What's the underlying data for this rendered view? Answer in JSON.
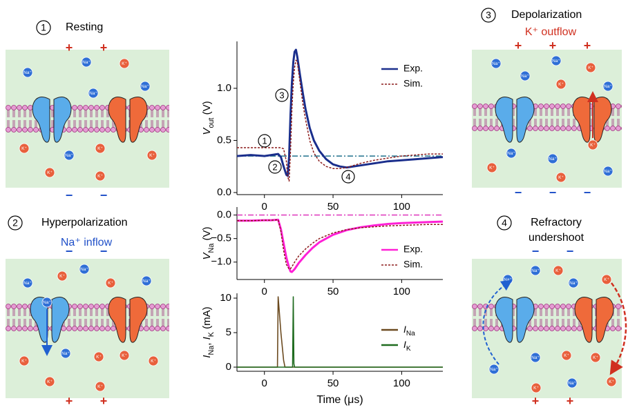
{
  "chart_data": [
    {
      "type": "line",
      "y_label": [
        {
          "text": "V",
          "italic": true
        },
        {
          "text": "out",
          "sub": true
        },
        {
          "text": " (V)"
        }
      ],
      "x": [
        -20,
        -10,
        0,
        5,
        10,
        12,
        14,
        16,
        17,
        18,
        19,
        20,
        21,
        22,
        23,
        24,
        26,
        28,
        30,
        33,
        36,
        40,
        45,
        50,
        55,
        60,
        65,
        70,
        80,
        90,
        100,
        110,
        120,
        130
      ],
      "series": [
        {
          "name": "Exp.",
          "color": "#1a2e8c",
          "dashed": false,
          "values": [
            0.35,
            0.36,
            0.35,
            0.36,
            0.37,
            0.34,
            0.25,
            0.17,
            0.16,
            0.35,
            0.75,
            1.05,
            1.25,
            1.35,
            1.37,
            1.3,
            1.12,
            0.95,
            0.8,
            0.62,
            0.5,
            0.4,
            0.32,
            0.27,
            0.25,
            0.24,
            0.25,
            0.26,
            0.28,
            0.3,
            0.31,
            0.32,
            0.33,
            0.34
          ]
        },
        {
          "name": "Sim.",
          "color": "#8b1a1a",
          "dashed": true,
          "values": [
            0.43,
            0.43,
            0.43,
            0.43,
            0.43,
            0.43,
            0.42,
            0.3,
            0.15,
            0.11,
            0.4,
            0.8,
            1.05,
            1.2,
            1.27,
            1.25,
            1.05,
            0.85,
            0.7,
            0.5,
            0.38,
            0.3,
            0.25,
            0.23,
            0.23,
            0.24,
            0.26,
            0.28,
            0.31,
            0.33,
            0.35,
            0.36,
            0.37,
            0.37
          ]
        }
      ],
      "hline": {
        "value": 0.35,
        "color": "#1f6f8b"
      },
      "annotations": [
        "1",
        "2",
        "3",
        "4"
      ],
      "xlim": [
        -20,
        130
      ],
      "xticks": [
        0,
        50,
        100
      ],
      "ylim": [
        -0.02,
        1.45
      ],
      "yticks": [
        {
          "value": 0,
          "label": "0.0"
        },
        {
          "value": 0.5,
          "label": "0.5"
        },
        {
          "value": 1,
          "label": "1.0"
        }
      ]
    },
    {
      "type": "line",
      "y_label": [
        {
          "text": "V",
          "italic": true
        },
        {
          "text": "Na",
          "sub": true
        },
        {
          "text": " (V)"
        }
      ],
      "x": [
        -20,
        -10,
        0,
        5,
        10,
        12,
        14,
        16,
        18,
        19,
        20,
        22,
        25,
        30,
        35,
        40,
        50,
        60,
        70,
        80,
        90,
        100,
        110,
        120,
        130
      ],
      "series": [
        {
          "name": "Exp.",
          "color": "#ff1fd6",
          "dashed": false,
          "values": [
            -0.12,
            -0.12,
            -0.11,
            -0.11,
            -0.1,
            -0.3,
            -0.6,
            -0.9,
            -1.12,
            -1.2,
            -1.21,
            -1.15,
            -1.02,
            -0.85,
            -0.7,
            -0.58,
            -0.42,
            -0.32,
            -0.26,
            -0.22,
            -0.19,
            -0.17,
            -0.16,
            -0.15,
            -0.14
          ]
        },
        {
          "name": "Sim.",
          "color": "#8b1a1a",
          "dashed": true,
          "values": [
            -0.12,
            -0.12,
            -0.11,
            -0.11,
            -0.1,
            -0.35,
            -0.75,
            -1.05,
            -1.15,
            -1.14,
            -1.1,
            -1.0,
            -0.87,
            -0.72,
            -0.6,
            -0.5,
            -0.38,
            -0.31,
            -0.27,
            -0.25,
            -0.23,
            -0.22,
            -0.21,
            -0.2,
            -0.2
          ]
        }
      ],
      "hline": {
        "value": 0,
        "color": "#e040c0"
      },
      "xlim": [
        -20,
        130
      ],
      "xticks": [
        0,
        50,
        100
      ],
      "ylim": [
        -1.37,
        0.17
      ],
      "yticks": [
        {
          "value": -1,
          "label": "−1.0"
        },
        {
          "value": -0.5,
          "label": "−0.5"
        },
        {
          "value": 0,
          "label": "0.0"
        }
      ]
    },
    {
      "type": "line",
      "y_label": [
        {
          "text": "I",
          "italic": true
        },
        {
          "text": "Na",
          "sub": true
        },
        {
          "text": ", "
        },
        {
          "text": "I",
          "italic": true
        },
        {
          "text": "K",
          "sub": true
        },
        {
          "text": " (mA)"
        }
      ],
      "x_label": "Time (μs)",
      "x": [
        -20,
        9.5,
        10,
        12,
        14,
        15,
        20.5,
        21,
        21.5,
        22,
        130
      ],
      "series": [
        {
          "name": [
            {
              "text": "I",
              "italic": true
            },
            {
              "text": "Na",
              "sub": true
            }
          ],
          "color": "#6b4a1f",
          "dashed": false,
          "values": [
            0,
            0,
            10.2,
            5,
            1,
            0,
            0,
            0,
            0,
            0,
            0
          ]
        },
        {
          "name": [
            {
              "text": "I",
              "italic": true
            },
            {
              "text": "K",
              "sub": true
            }
          ],
          "color": "#1f6b1f",
          "dashed": false,
          "values": [
            0,
            0,
            0,
            0,
            0,
            0,
            0,
            10.2,
            0.5,
            0,
            0
          ]
        }
      ],
      "xlim": [
        -20,
        130
      ],
      "xticks": [
        0,
        50,
        100
      ],
      "ylim": [
        -0.6,
        10.7
      ],
      "yticks": [
        0,
        5,
        10
      ]
    }
  ],
  "panels": [
    {
      "number": "1",
      "title": [
        "Resting"
      ],
      "top_signs": [
        "+",
        "+"
      ],
      "top_sign_color": "#d03020",
      "bottom_signs": [
        "−",
        "−"
      ],
      "bottom_sign_color": "#2050c8",
      "ions": [
        "Na⁺",
        "Na⁺",
        "Na⁺",
        "K⁺",
        "Na⁺",
        "K⁺",
        "Na⁺",
        "K⁺",
        "K⁺",
        "K⁺",
        "K⁺"
      ]
    },
    {
      "number": "2",
      "title": [
        "Hyperpolarization"
      ],
      "subtitle": "Na⁺ inflow",
      "subtitle_color": "#2050c8",
      "top_signs": [
        "−",
        "−"
      ],
      "top_sign_color": "#2050c8",
      "bottom_signs": [
        "+",
        "+"
      ],
      "bottom_sign_color": "#d03020",
      "ions": [
        "Na⁺",
        "K⁺",
        "Na⁺",
        "K⁺",
        "Na⁺",
        "Na⁺",
        "K⁺",
        "Na⁺",
        "K⁺",
        "K⁺",
        "K⁺",
        "K⁺",
        "K⁺"
      ]
    },
    {
      "number": "3",
      "title": [
        "Depolarization"
      ],
      "subtitle": "K⁺ outflow",
      "subtitle_color": "#d03020",
      "top_signs": [
        "+",
        "+",
        "+"
      ],
      "top_sign_color": "#d03020",
      "bottom_signs": [
        "−",
        "−",
        "−"
      ],
      "bottom_sign_color": "#2050c8",
      "ions": [
        "Na⁺",
        "Na⁺",
        "Na⁺",
        "K⁺",
        "Na⁺",
        "K⁺",
        "K⁺",
        "Na⁺",
        "Na⁺",
        "K⁺",
        "K⁺",
        "Na⁺"
      ]
    },
    {
      "number": "4",
      "title": [
        "Refractory",
        "undershoot"
      ],
      "top_signs": [
        "−",
        "−"
      ],
      "top_sign_color": "#2050c8",
      "bottom_signs": [
        "+",
        "+"
      ],
      "bottom_sign_color": "#d03020",
      "ions": [
        "Na⁺",
        "Na⁺",
        "K⁺",
        "K⁺",
        "Na⁺",
        "Na⁺",
        "Na⁺",
        "K⁺",
        "K⁺",
        "Na⁺",
        "K⁺",
        "K⁺"
      ]
    }
  ]
}
